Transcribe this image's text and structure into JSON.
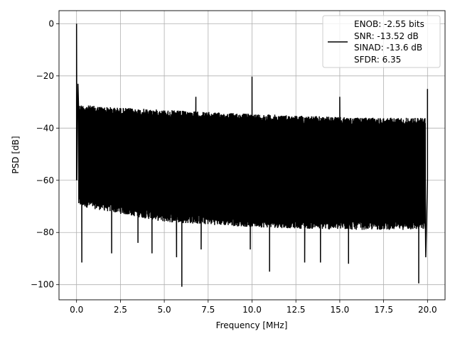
{
  "chart_data": {
    "type": "line",
    "title": "",
    "xlabel": "Frequency [MHz]",
    "ylabel": "PSD [dB]",
    "xlim": [
      -1.0,
      21.0
    ],
    "ylim": [
      -105.8,
      5.0
    ],
    "xticks": [
      0.0,
      2.5,
      5.0,
      7.5,
      10.0,
      12.5,
      15.0,
      17.5,
      20.0
    ],
    "xtick_labels": [
      "0.0",
      "2.5",
      "5.0",
      "7.5",
      "10.0",
      "12.5",
      "15.0",
      "17.5",
      "20.0"
    ],
    "yticks": [
      0,
      -20,
      -40,
      -60,
      -80,
      -100
    ],
    "ytick_labels": [
      "0",
      "−20",
      "−40",
      "−60",
      "−80",
      "−100"
    ],
    "grid": true,
    "legend_position": "top-right",
    "series": [
      {
        "color": "#000000",
        "noise_ceiling": [
          [
            0.2,
            -31
          ],
          [
            2.0,
            -32
          ],
          [
            5.0,
            -33
          ],
          [
            8.0,
            -34
          ],
          [
            12.0,
            -35
          ],
          [
            16.0,
            -36
          ],
          [
            20.0,
            -36
          ]
        ],
        "noise_floor": [
          [
            0.2,
            -70
          ],
          [
            5.0,
            -76
          ],
          [
            10.0,
            -78
          ],
          [
            15.0,
            -79
          ],
          [
            20.0,
            -79
          ]
        ],
        "spikes": [
          {
            "x": 0.0,
            "y": 0.0
          },
          {
            "x": 0.08,
            "y": -23.0
          },
          {
            "x": 6.8,
            "y": -28.0
          },
          {
            "x": 10.0,
            "y": -20.3
          },
          {
            "x": 15.0,
            "y": -28.0
          },
          {
            "x": 20.0,
            "y": -25.0
          }
        ],
        "dips": [
          {
            "x": 0.3,
            "y": -91.5
          },
          {
            "x": 2.0,
            "y": -88.0
          },
          {
            "x": 3.5,
            "y": -84.0
          },
          {
            "x": 4.3,
            "y": -88.0
          },
          {
            "x": 5.7,
            "y": -89.5
          },
          {
            "x": 6.0,
            "y": -100.8
          },
          {
            "x": 7.1,
            "y": -86.5
          },
          {
            "x": 9.9,
            "y": -86.5
          },
          {
            "x": 11.0,
            "y": -95.0
          },
          {
            "x": 13.0,
            "y": -91.5
          },
          {
            "x": 13.9,
            "y": -91.5
          },
          {
            "x": 15.5,
            "y": -92.0
          },
          {
            "x": 19.5,
            "y": -99.5
          },
          {
            "x": 19.9,
            "y": -89.5
          }
        ]
      }
    ],
    "legend": {
      "entries": [
        "ENOB: -2.55 bits",
        "SNR: -13.52 dB",
        "SINAD: -13.6 dB",
        "SFDR: 6.35"
      ]
    }
  }
}
